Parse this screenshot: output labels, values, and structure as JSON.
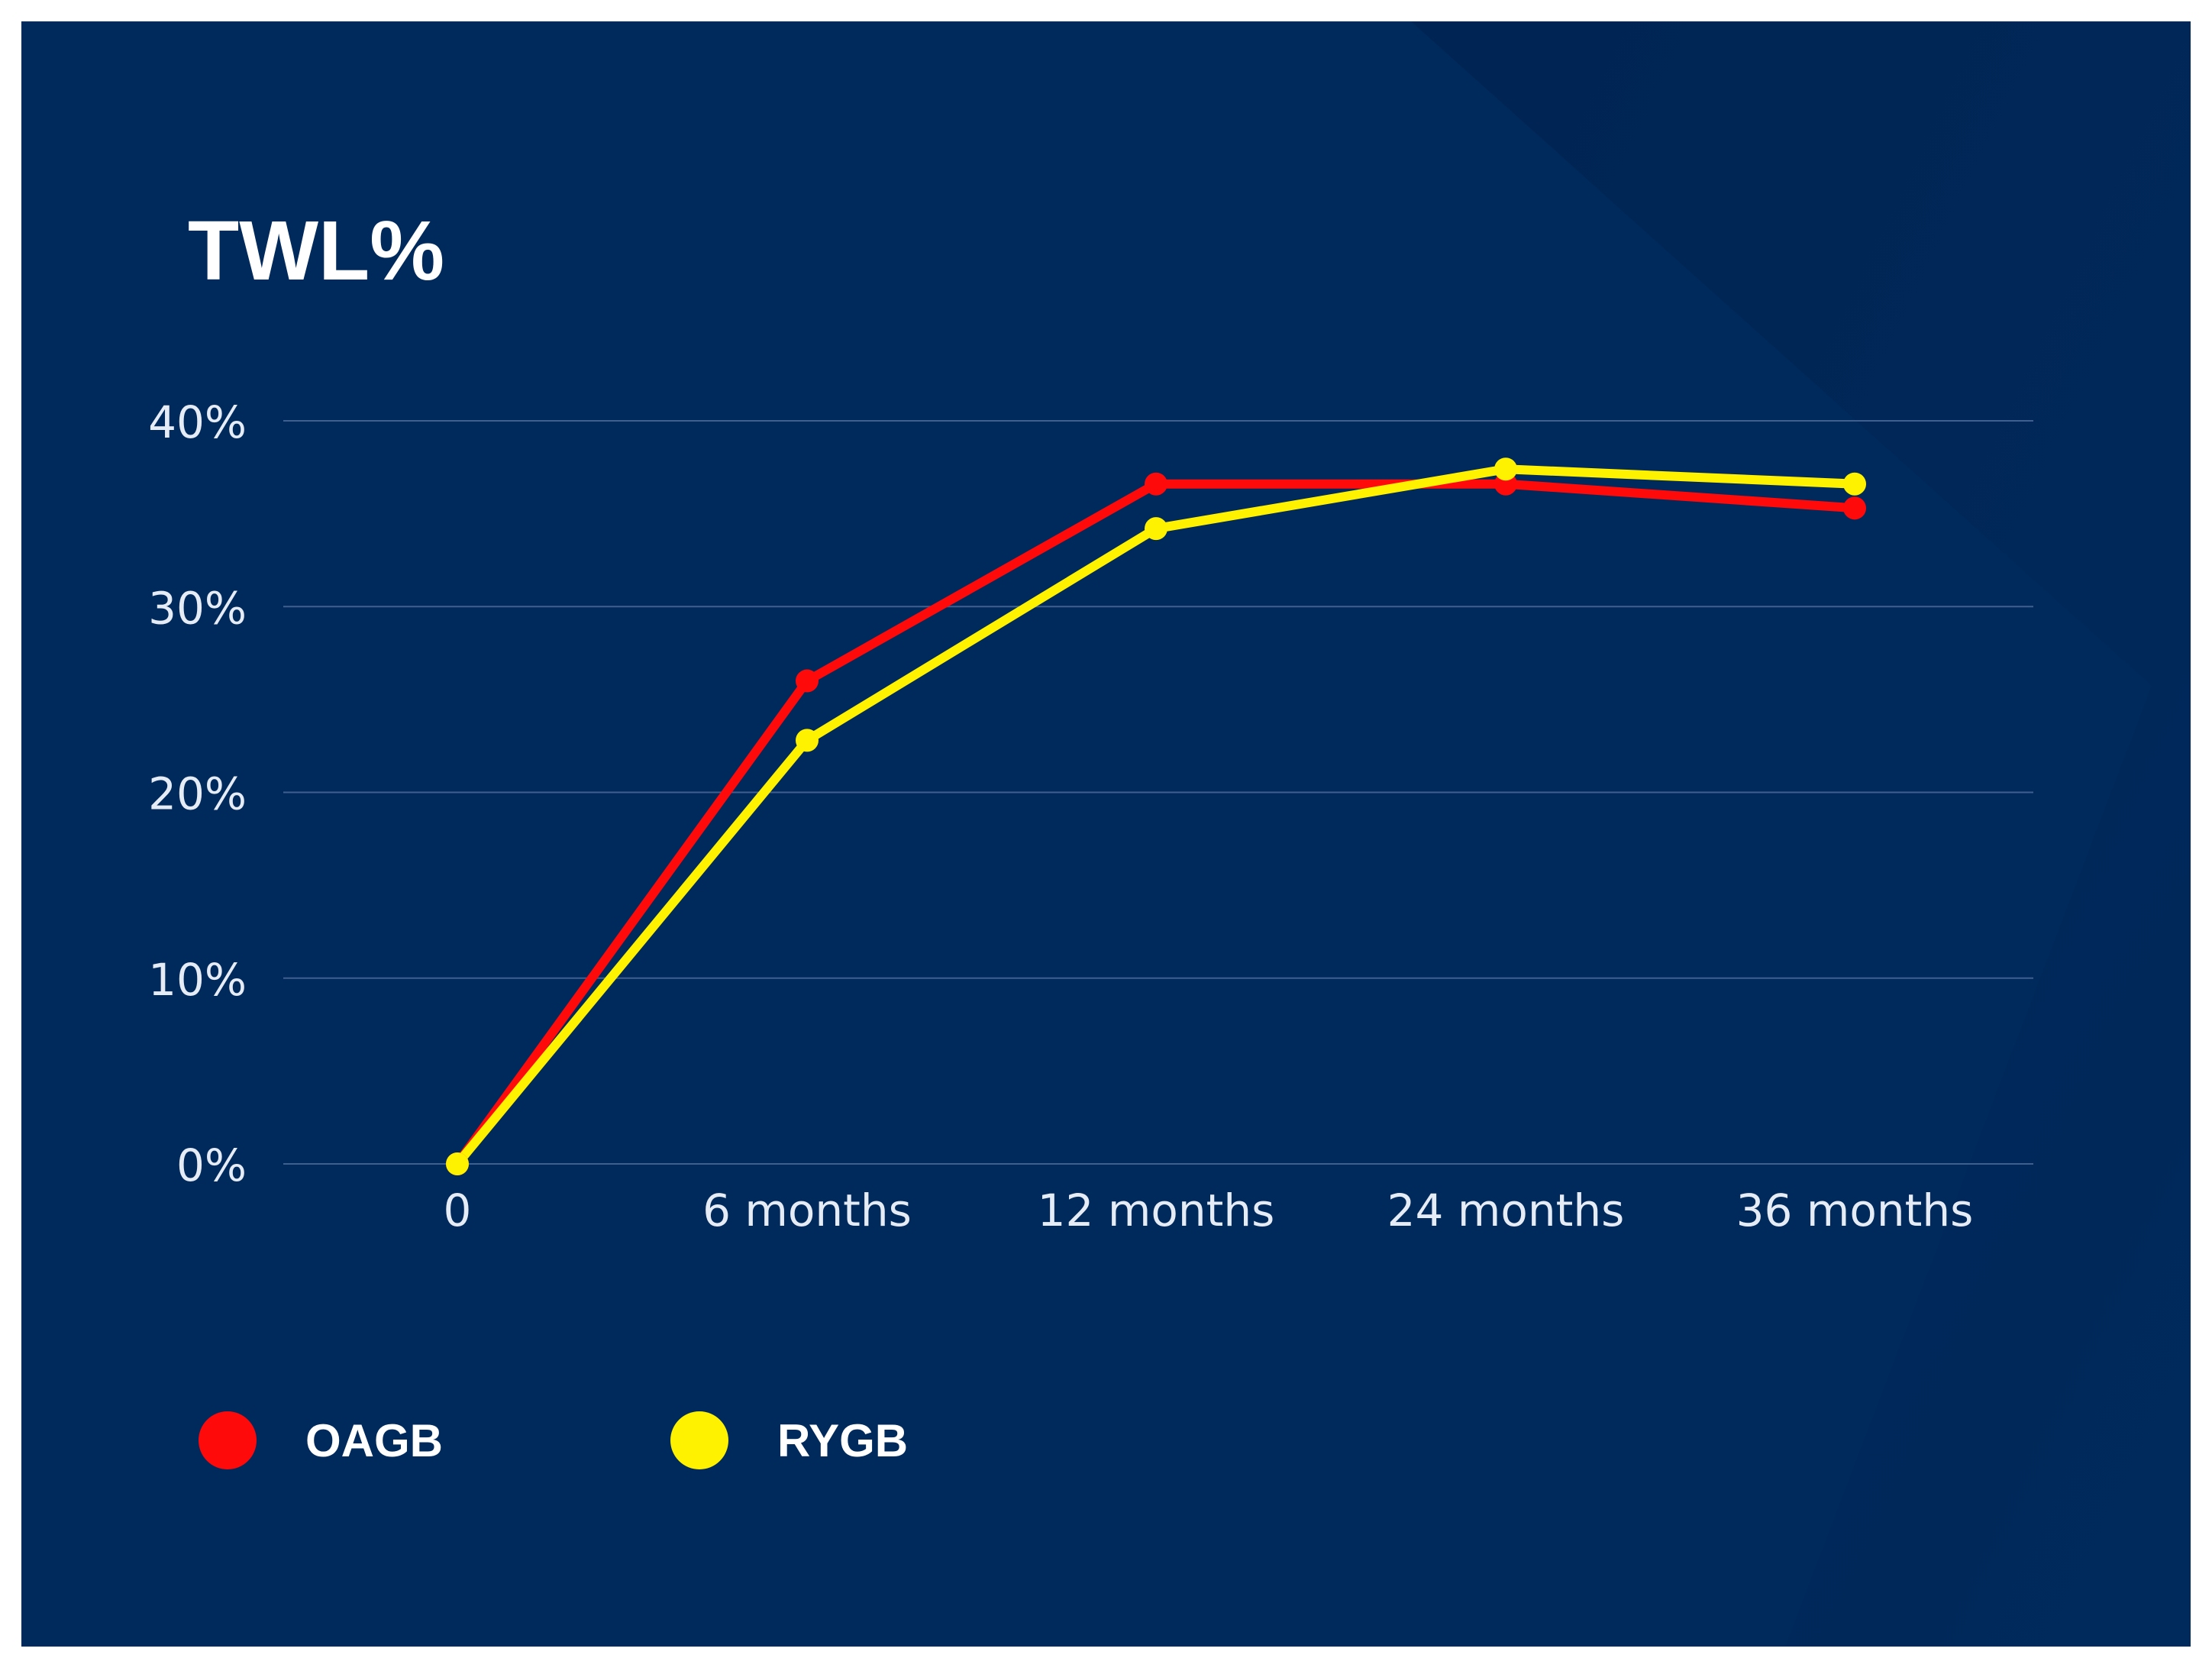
{
  "colors": {
    "background": "#002a5c",
    "oagb": "#ff0a0a",
    "rygb": "#fff200",
    "grid": "#3f5f8e",
    "text": "#ffffff"
  },
  "chart_data": {
    "type": "line",
    "title": "TWL%",
    "categories": [
      "0",
      "6 months",
      "12 months",
      "24 months",
      "36 months"
    ],
    "y_ticks": [
      "0%",
      "10%",
      "20%",
      "30%",
      "40%"
    ],
    "ylim": [
      0,
      40
    ],
    "grid": true,
    "legend_position": "bottom-left",
    "series": [
      {
        "name": "OAGB",
        "color": "#ff0a0a",
        "values": [
          0,
          26,
          36.6,
          36.6,
          35.3
        ]
      },
      {
        "name": "RYGB",
        "color": "#fff200",
        "values": [
          0,
          22.8,
          34.2,
          37.4,
          36.6
        ]
      }
    ]
  }
}
